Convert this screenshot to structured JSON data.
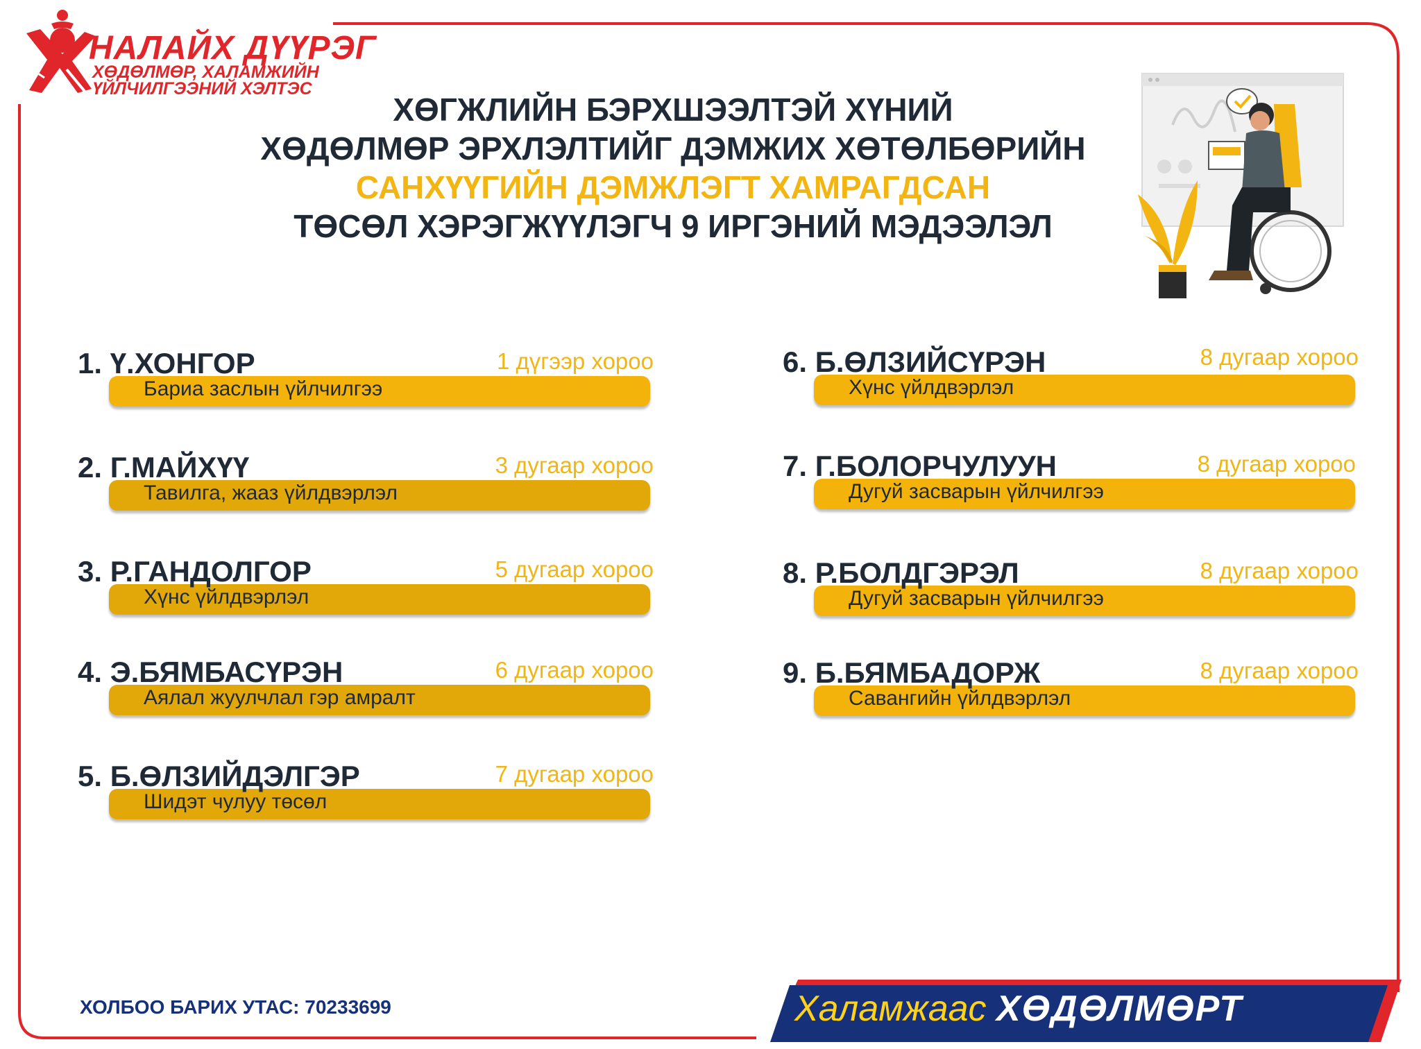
{
  "logo": {
    "title": "НАЛАЙХ ДҮҮРЭГ",
    "subtitle_line1": "ХӨДӨЛМӨР, ХАЛАМЖИЙН",
    "subtitle_line2": "ҮЙЛЧИЛГЭЭНИЙ ХЭЛТЭС"
  },
  "heading": {
    "line1": "ХӨГЖЛИЙН БЭРХШЭЭЛТЭЙ ХҮНИЙ",
    "line2": "ХӨДӨЛМӨР ЭРХЛЭЛТИЙГ ДЭМЖИХ ХӨТӨЛБӨРИЙН",
    "line3": "САНХҮҮГИЙН ДЭМЖЛЭГТ ХАМРАГДСАН",
    "line4": "ТӨСӨЛ ХЭРЭГЖҮҮЛЭГЧ 9 ИРГЭНИЙ МЭДЭЭЛЭЛ"
  },
  "entries": [
    {
      "name": "1. Ү.ХОНГОР",
      "district": "1 дүгээр хороо",
      "description": "Бариа заслын үйлчилгээ"
    },
    {
      "name": "2. Г.МАЙХҮҮ",
      "district": "3 дугаар хороо",
      "description": "Тавилга, жааз  үйлдвэрлэл"
    },
    {
      "name": "3. Р.ГАНДОЛГОР",
      "district": "5 дугаар хороо",
      "description": "Хүнс үйлдвэрлэл"
    },
    {
      "name": "4. Э.БЯМБАСҮРЭН",
      "district": "6 дугаар хороо",
      "description": "Аялал жуулчлал гэр амралт"
    },
    {
      "name": "5. Б.ӨЛЗИЙДЭЛГЭР",
      "district": "7 дугаар хороо",
      "description": "Шидэт чулуу төсөл"
    },
    {
      "name": "6. Б.ӨЛЗИЙСҮРЭН",
      "district": "8 дугаар хороо",
      "description": "Хүнс үйлдвэрлэл"
    },
    {
      "name": "7. Г.БОЛОРЧУЛУУН",
      "district": "8 дугаар хороо",
      "description": "Дугуй засварын үйлчилгээ"
    },
    {
      "name": "8. Р.БОЛДГЭРЭЛ",
      "district": "8 дугаар хороо",
      "description": "Дугуй засварын үйлчилгээ"
    },
    {
      "name": "9. Б.БЯМБАДОРЖ",
      "district": "8 дугаар хороо",
      "description": "Савангийн үйлдвэрлэл"
    }
  ],
  "footer": {
    "contact": "ХОЛБОО БАРИХ УТАС: 70233699",
    "slogan_part1": "Халамжаас",
    "slogan_part2": "ХӨДӨЛМӨРТ"
  },
  "colors": {
    "accent_red": "#e0262a",
    "accent_yellow": "#f4b30a",
    "text_dark": "#1f2a36",
    "navy": "#17307a"
  },
  "icons": [
    "logo-emblem-icon",
    "wheelchair-user-illustration",
    "plant-illustration",
    "checkmark-icon"
  ]
}
